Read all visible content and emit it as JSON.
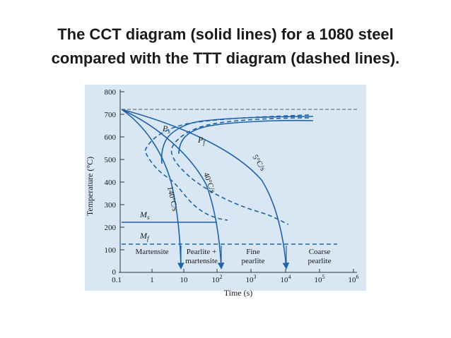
{
  "slide": {
    "title_line1": "The CCT diagram (solid lines) for a 1080 steel",
    "title_line2": "compared with the TTT diagram (dashed lines)."
  },
  "diagram": {
    "y_axis_label": "Temperature (°C)",
    "x_axis_label": "Time (s)",
    "y_ticks": [
      "800",
      "700",
      "600",
      "500",
      "400",
      "300",
      "200",
      "100",
      "0"
    ],
    "x_tick_first": "0.1",
    "x_tick_plain": [
      "1",
      "10"
    ],
    "x_tick_powers": [
      {
        "base": "10",
        "exp": "2"
      },
      {
        "base": "10",
        "exp": "3"
      },
      {
        "base": "10",
        "exp": "4"
      },
      {
        "base": "10",
        "exp": "5"
      },
      {
        "base": "10",
        "exp": "6"
      }
    ],
    "labels": {
      "ps_main": "P",
      "ps_sub": "s",
      "pf_main": "P",
      "pf_sub": "f",
      "ms_main": "M",
      "ms_sub": "s",
      "mf_main": "M",
      "mf_sub": "f",
      "rate_140": "140°C/s",
      "rate_40": "40°C/s",
      "rate_5": "5°C/s"
    },
    "regions": {
      "martensite": "Martensite",
      "pearlite_martensite_line1": "Pearlite +",
      "pearlite_martensite_line2": "martensite",
      "fine_line1": "Fine",
      "fine_line2": "pearlite",
      "coarse_line1": "Coarse",
      "coarse_line2": "pearlite"
    },
    "colors": {
      "plot_background": "#d9e7f5",
      "curve": "#1f63a8",
      "axis": "#333333",
      "text": "#1a1a1a"
    }
  }
}
